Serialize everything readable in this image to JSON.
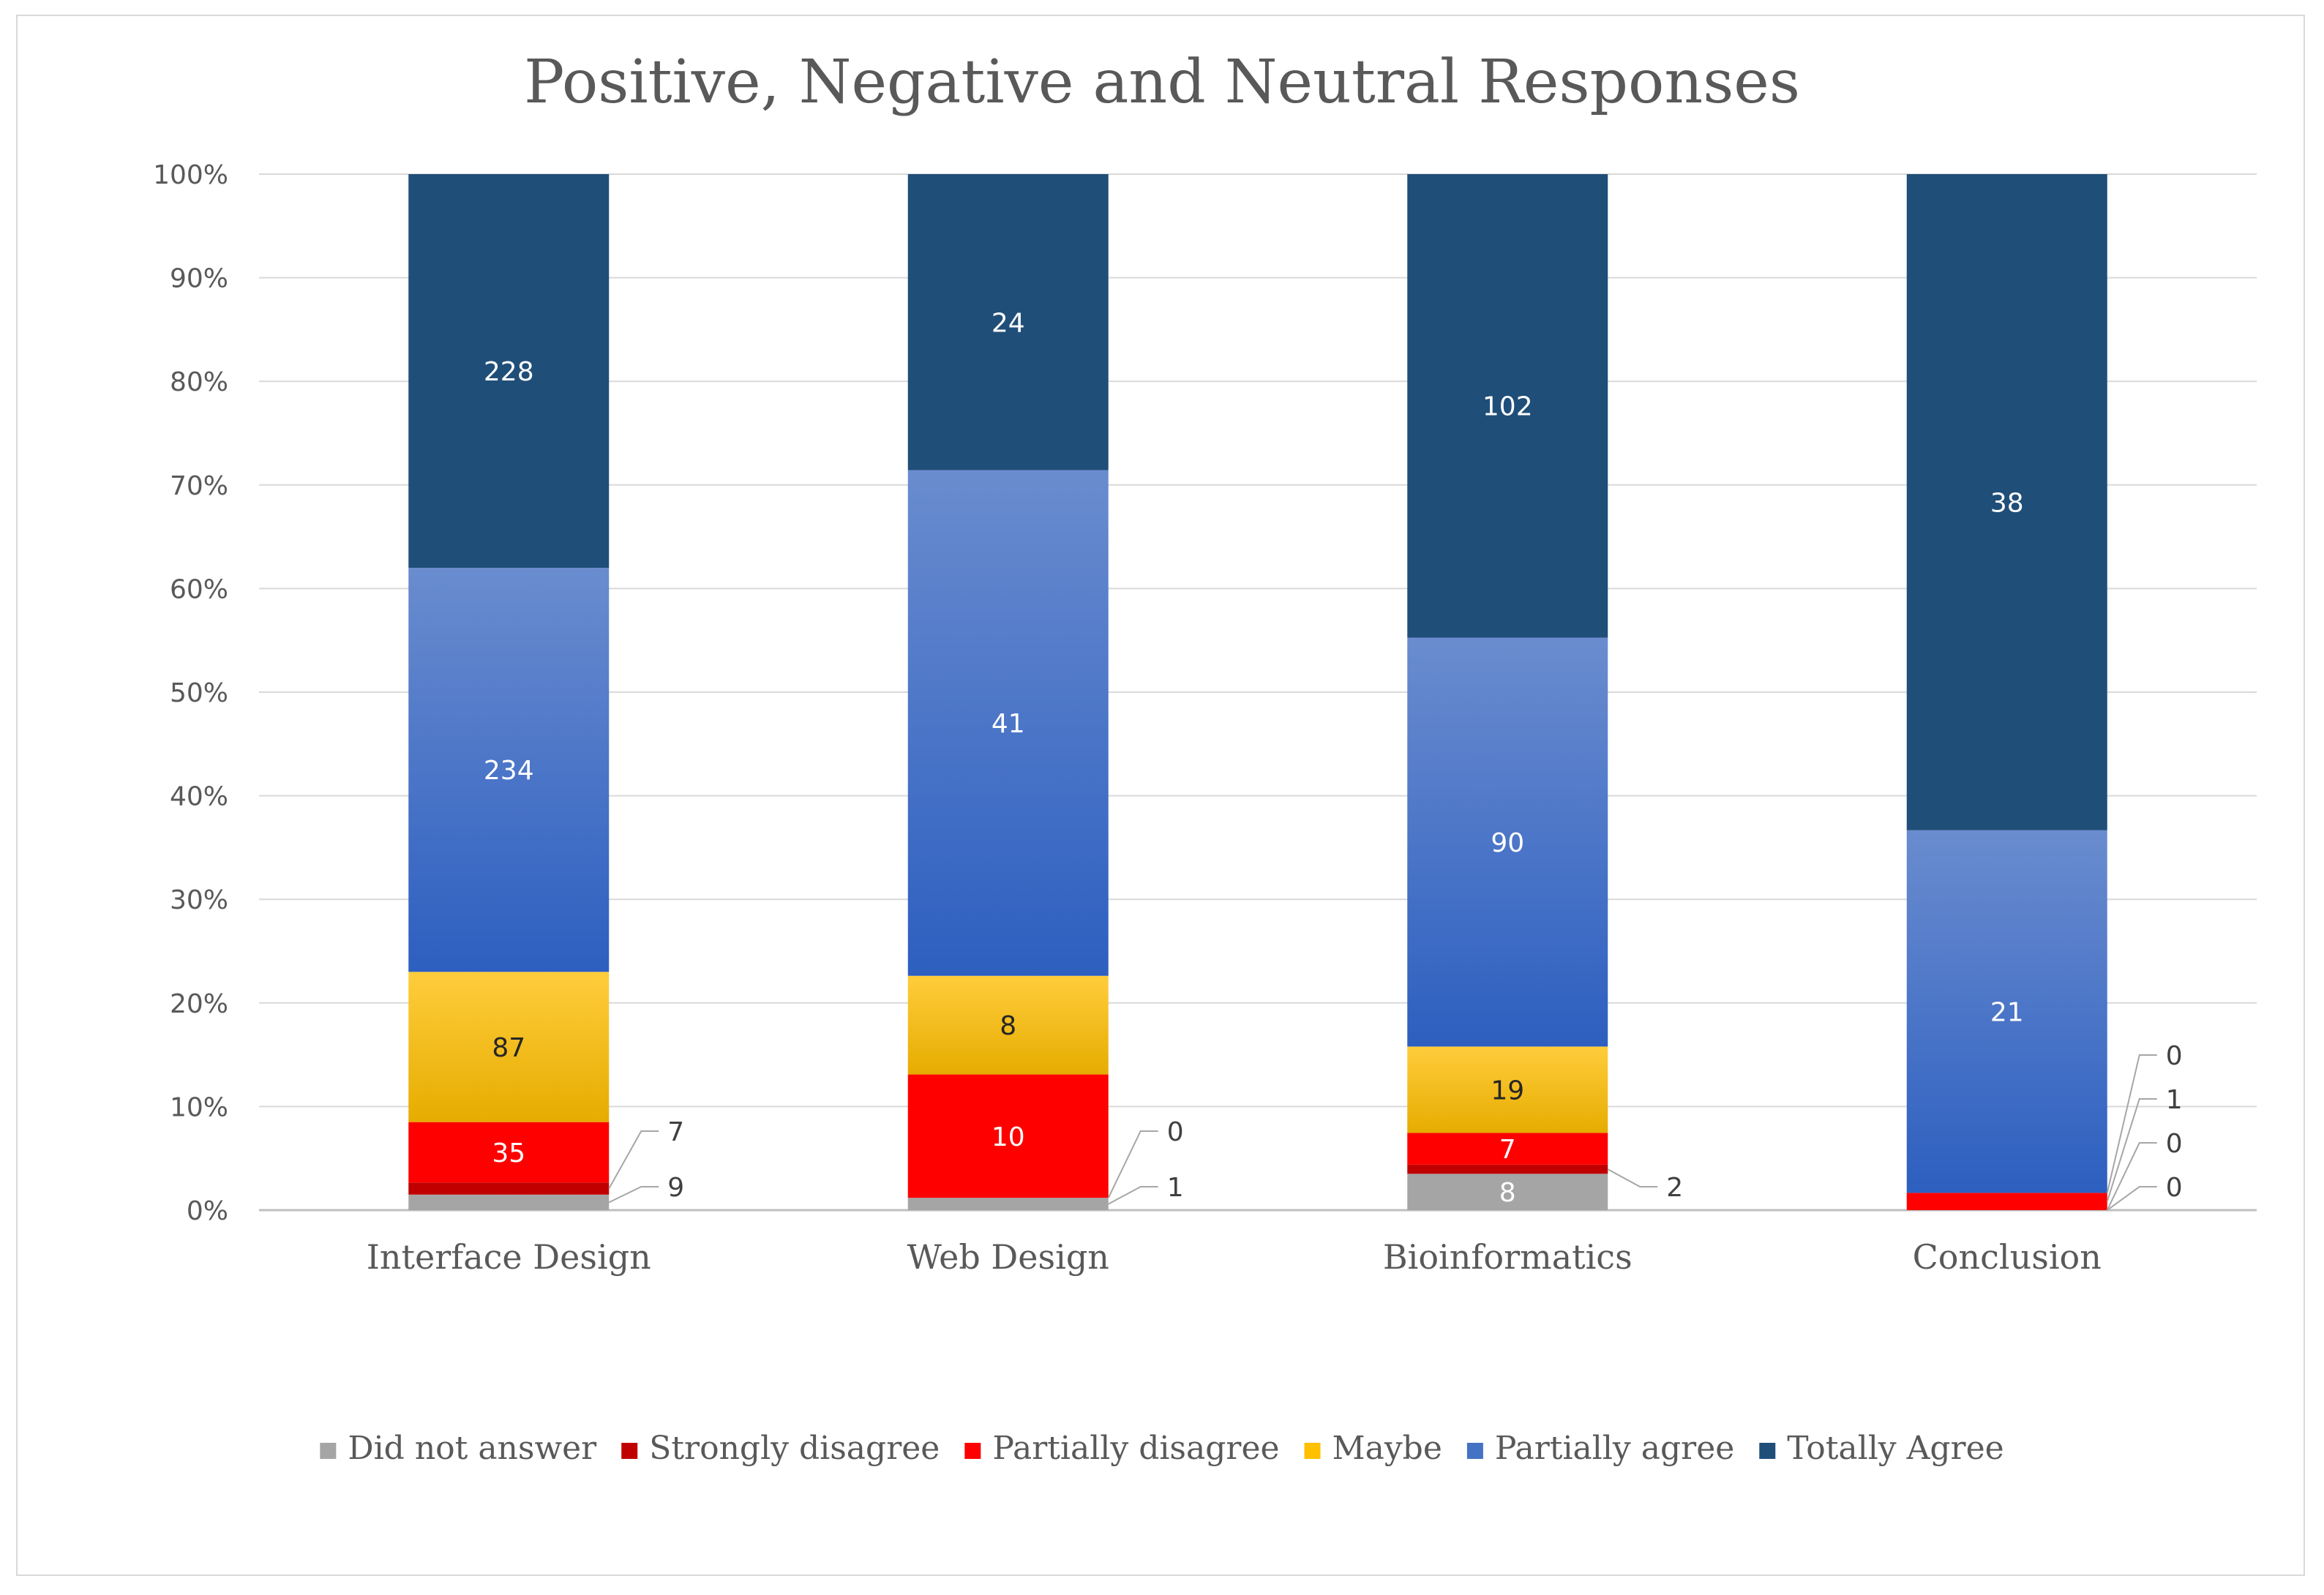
{
  "chart_data": {
    "type": "bar",
    "stacking": "percent",
    "title": "Positive, Negative and Neutral Responses",
    "categories": [
      "Interface Design",
      "Web Design",
      "Bioinformatics",
      "Conclusion"
    ],
    "y_tick_labels": [
      "0%",
      "10%",
      "20%",
      "30%",
      "40%",
      "50%",
      "60%",
      "70%",
      "80%",
      "90%",
      "100%"
    ],
    "ylim": [
      0,
      100
    ],
    "grid": true,
    "legend_position": "bottom",
    "series": [
      {
        "name": "Did not answer",
        "color": "#a5a5a5",
        "values": [
          9,
          1,
          8,
          0
        ],
        "labels": [
          "9",
          "1",
          "8",
          "0"
        ]
      },
      {
        "name": "Strongly disagree",
        "color": "#c00000",
        "values": [
          7,
          0,
          2,
          0
        ],
        "labels": [
          "7",
          "0",
          "2",
          "0"
        ]
      },
      {
        "name": "Partially disagree",
        "color": "#ff0000",
        "values": [
          35,
          10,
          7,
          1
        ],
        "labels": [
          "35",
          "10",
          "7",
          "1"
        ]
      },
      {
        "name": "Maybe",
        "color": "#ffc000",
        "values": [
          87,
          8,
          19,
          0
        ],
        "labels": [
          "87",
          "8",
          "19",
          "0"
        ]
      },
      {
        "name": "Partially agree",
        "color": "#4472c4",
        "values": [
          234,
          41,
          90,
          21
        ],
        "labels": [
          "234",
          "41",
          "90",
          "21"
        ]
      },
      {
        "name": "Totally Agree",
        "color": "#1f4e79",
        "values": [
          228,
          24,
          102,
          38
        ],
        "labels": [
          "228",
          "24",
          "102",
          "38"
        ]
      }
    ]
  }
}
